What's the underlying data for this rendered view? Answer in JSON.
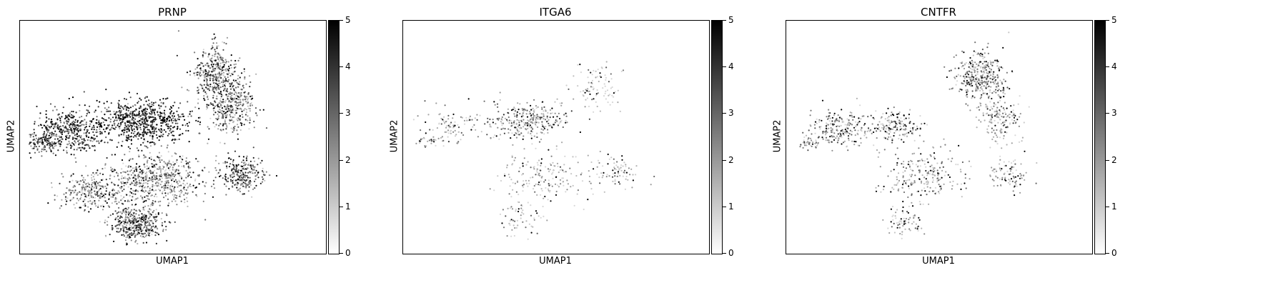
{
  "figure": {
    "colorbar_ticks": [
      "0",
      "1",
      "2",
      "3",
      "4",
      "5"
    ],
    "colormap": [
      "#ffffff",
      "#000000"
    ]
  },
  "chart_data": [
    {
      "type": "scatter",
      "title": "PRNP",
      "xlabel": "UMAP1",
      "ylabel": "UMAP2",
      "color_range": [
        0,
        5
      ],
      "density": "high",
      "regions": [
        {
          "name": "left-cluster",
          "cx": 0.17,
          "cy": 0.47,
          "rx": 0.11,
          "ry": 0.09,
          "n": 420,
          "expr": 3.6
        },
        {
          "name": "left-tip",
          "cx": 0.08,
          "cy": 0.52,
          "rx": 0.05,
          "ry": 0.04,
          "n": 120,
          "expr": 3.0
        },
        {
          "name": "upper-mid",
          "cx": 0.4,
          "cy": 0.43,
          "rx": 0.14,
          "ry": 0.08,
          "n": 650,
          "expr": 4.1
        },
        {
          "name": "upper-right",
          "cx": 0.64,
          "cy": 0.23,
          "rx": 0.07,
          "ry": 0.11,
          "n": 380,
          "expr": 2.3
        },
        {
          "name": "right-mid",
          "cx": 0.69,
          "cy": 0.37,
          "rx": 0.07,
          "ry": 0.1,
          "n": 340,
          "expr": 2.0
        },
        {
          "name": "right-lower",
          "cx": 0.73,
          "cy": 0.66,
          "rx": 0.07,
          "ry": 0.07,
          "n": 260,
          "expr": 2.6
        },
        {
          "name": "center",
          "cx": 0.45,
          "cy": 0.67,
          "rx": 0.13,
          "ry": 0.11,
          "n": 600,
          "expr": 1.8
        },
        {
          "name": "lower-left",
          "cx": 0.24,
          "cy": 0.73,
          "rx": 0.1,
          "ry": 0.07,
          "n": 300,
          "expr": 1.6
        },
        {
          "name": "bottom",
          "cx": 0.38,
          "cy": 0.87,
          "rx": 0.08,
          "ry": 0.07,
          "n": 420,
          "expr": 2.4
        }
      ]
    },
    {
      "type": "scatter",
      "title": "ITGA6",
      "xlabel": "UMAP1",
      "ylabel": "UMAP2",
      "color_range": [
        0,
        5
      ],
      "density": "low",
      "regions": [
        {
          "name": "left-cluster",
          "cx": 0.16,
          "cy": 0.46,
          "rx": 0.09,
          "ry": 0.07,
          "n": 90,
          "expr": 0.8
        },
        {
          "name": "left-tip",
          "cx": 0.08,
          "cy": 0.52,
          "rx": 0.04,
          "ry": 0.03,
          "n": 30,
          "expr": 1.2
        },
        {
          "name": "upper-mid",
          "cx": 0.4,
          "cy": 0.43,
          "rx": 0.13,
          "ry": 0.07,
          "n": 300,
          "expr": 1.6
        },
        {
          "name": "upper-right",
          "cx": 0.63,
          "cy": 0.28,
          "rx": 0.07,
          "ry": 0.11,
          "n": 90,
          "expr": 0.6
        },
        {
          "name": "center",
          "cx": 0.45,
          "cy": 0.67,
          "rx": 0.13,
          "ry": 0.1,
          "n": 170,
          "expr": 0.7
        },
        {
          "name": "right-lower",
          "cx": 0.7,
          "cy": 0.65,
          "rx": 0.07,
          "ry": 0.06,
          "n": 80,
          "expr": 0.8
        },
        {
          "name": "bottom",
          "cx": 0.38,
          "cy": 0.85,
          "rx": 0.07,
          "ry": 0.07,
          "n": 60,
          "expr": 0.6
        }
      ]
    },
    {
      "type": "scatter",
      "title": "CNTFR",
      "xlabel": "UMAP1",
      "ylabel": "UMAP2",
      "color_range": [
        0,
        5
      ],
      "density": "medium",
      "regions": [
        {
          "name": "left-cluster",
          "cx": 0.17,
          "cy": 0.47,
          "rx": 0.09,
          "ry": 0.07,
          "n": 200,
          "expr": 1.5
        },
        {
          "name": "left-tip",
          "cx": 0.08,
          "cy": 0.52,
          "rx": 0.04,
          "ry": 0.03,
          "n": 40,
          "expr": 1.4
        },
        {
          "name": "upper-mid",
          "cx": 0.35,
          "cy": 0.45,
          "rx": 0.09,
          "ry": 0.06,
          "n": 180,
          "expr": 1.0
        },
        {
          "name": "upper-right",
          "cx": 0.63,
          "cy": 0.24,
          "rx": 0.08,
          "ry": 0.11,
          "n": 360,
          "expr": 1.7
        },
        {
          "name": "right-mid",
          "cx": 0.7,
          "cy": 0.42,
          "rx": 0.06,
          "ry": 0.1,
          "n": 160,
          "expr": 1.3
        },
        {
          "name": "center",
          "cx": 0.45,
          "cy": 0.67,
          "rx": 0.12,
          "ry": 0.1,
          "n": 230,
          "expr": 1.2
        },
        {
          "name": "right-lower",
          "cx": 0.73,
          "cy": 0.66,
          "rx": 0.06,
          "ry": 0.06,
          "n": 90,
          "expr": 1.0
        },
        {
          "name": "bottom",
          "cx": 0.39,
          "cy": 0.86,
          "rx": 0.06,
          "ry": 0.06,
          "n": 70,
          "expr": 0.9
        }
      ]
    }
  ]
}
